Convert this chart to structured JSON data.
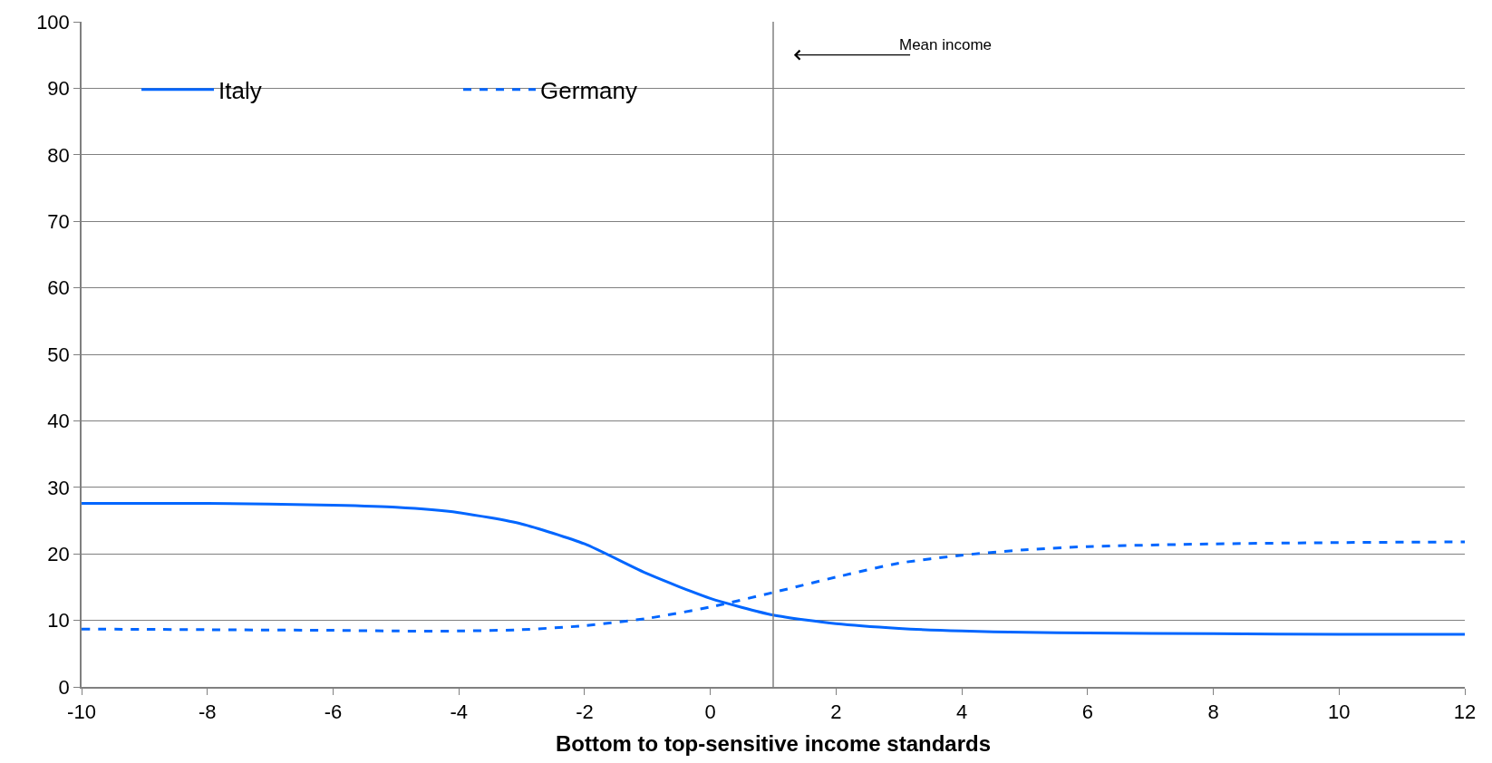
{
  "chart_data": {
    "type": "line",
    "xlabel": "Bottom to top-sensitive income standards",
    "x": [
      -10,
      -8,
      -6,
      -5,
      -4,
      -3,
      -2,
      -1,
      0,
      1,
      2,
      3,
      4,
      5,
      6,
      8,
      10,
      12
    ],
    "series": [
      {
        "name": "Italy",
        "color": "#0066ff",
        "line_style": "solid",
        "values": [
          27.6,
          27.6,
          27.3,
          27.0,
          26.2,
          24.5,
          21.5,
          17.0,
          13.3,
          10.8,
          9.5,
          8.8,
          8.4,
          8.2,
          8.1,
          8.0,
          7.9,
          7.9
        ]
      },
      {
        "name": "Germany",
        "color": "#0066ff",
        "line_style": "dashed",
        "values": [
          8.7,
          8.6,
          8.5,
          8.4,
          8.4,
          8.6,
          9.2,
          10.3,
          12.0,
          14.2,
          16.5,
          18.6,
          19.8,
          20.6,
          21.1,
          21.5,
          21.7,
          21.8
        ]
      }
    ],
    "xlim": [
      -10,
      12
    ],
    "xticks": [
      -10,
      -8,
      -6,
      -4,
      -2,
      0,
      2,
      4,
      6,
      8,
      10,
      12
    ],
    "ylim": [
      0,
      100
    ],
    "yticks": [
      0,
      10,
      20,
      30,
      40,
      50,
      60,
      70,
      80,
      90,
      100
    ],
    "ref_lines": [
      {
        "axis": "x",
        "value": 1,
        "color": "#808080"
      }
    ],
    "annotations": [
      "Mean income"
    ],
    "grid": "y",
    "legend": "top left",
    "marker": "none"
  }
}
